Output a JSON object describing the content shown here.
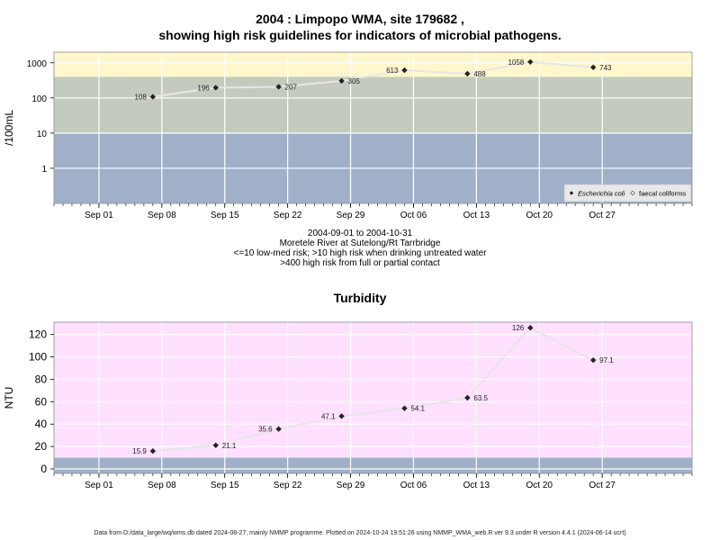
{
  "top_title_line1": "2004 : Limpopo WMA, site 179682 ,",
  "top_title_line2": "showing high risk guidelines for indicators of microbial pathogens.",
  "subtitle_lines": [
    "2004-09-01 to 2004-10-31",
    "Moretele River at Sutelong/Rt Tarrbridge",
    "<=10 low-med risk; >10 high risk when drinking untreated water",
    ">400 high risk from full or partial contact"
  ],
  "bottom_title": "Turbidity",
  "footer": "Data from D:/data_large/wq/wms.db dated 2024-08-27, mainly NMMP programme. Plotted on 2024-10-24 19:51:26 using NMMP_WMA_web.R ver 9.3 under R version 4.4.1 (2024-06-14 ucrt)",
  "colors": {
    "band_low": "#a0b0c8",
    "band_mid": "#c3cbbf",
    "band_high": "#fff7cc",
    "turb_bg": "#ffe0ff",
    "turb_low": "#a0b0c8",
    "line": "#e6e6e6",
    "point": "#222222"
  },
  "chart_data": [
    {
      "type": "scatter",
      "title": "2004 : Limpopo WMA, site 179682 , showing high risk guidelines for indicators of microbial pathogens.",
      "ylabel": "/100mL",
      "yscale": "log",
      "yticks": [
        1,
        10,
        100,
        1000
      ],
      "ytick_labels": [
        "1",
        "10",
        "100",
        "1000"
      ],
      "ylim": [
        0.1,
        2000
      ],
      "xlim": [
        "2004-08-27",
        "2004-11-06"
      ],
      "xticks": [
        "2004-09-01",
        "2004-09-08",
        "2004-09-15",
        "2004-09-22",
        "2004-09-29",
        "2004-10-06",
        "2004-10-13",
        "2004-10-20",
        "2004-10-27"
      ],
      "xtick_labels": [
        "Sep 01",
        "Sep 08",
        "Sep 15",
        "Sep 22",
        "Sep 29",
        "Oct 06",
        "Oct 13",
        "Oct 20",
        "Oct 27"
      ],
      "bands": [
        {
          "from": 0.1,
          "to": 10
        },
        {
          "from": 10,
          "to": 400
        },
        {
          "from": 400,
          "to": 2000
        }
      ],
      "legend_position": "bottom-right",
      "legend": [
        "Escherichia coli",
        "faecal coliforms"
      ],
      "series": [
        {
          "name": "Escherichia coli",
          "x": [
            "2004-09-07",
            "2004-09-14",
            "2004-09-21",
            "2004-09-28",
            "2004-10-05",
            "2004-10-12",
            "2004-10-19",
            "2004-10-26"
          ],
          "y": [
            108,
            196,
            207,
            305,
            613,
            488,
            1058,
            743
          ],
          "labels": [
            "108",
            "196",
            "207",
            "305",
            "613",
            "488",
            "1058",
            "743"
          ]
        }
      ]
    },
    {
      "type": "scatter",
      "title": "Turbidity",
      "ylabel": "NTU",
      "yticks": [
        0,
        20,
        40,
        60,
        80,
        100,
        120
      ],
      "ytick_labels": [
        "0",
        "20",
        "40",
        "60",
        "80",
        "100",
        "120"
      ],
      "ylim": [
        -4,
        131
      ],
      "xlim": [
        "2004-08-27",
        "2004-11-06"
      ],
      "xticks": [
        "2004-09-01",
        "2004-09-08",
        "2004-09-15",
        "2004-09-22",
        "2004-09-29",
        "2004-10-06",
        "2004-10-13",
        "2004-10-20",
        "2004-10-27"
      ],
      "xtick_labels": [
        "Sep 01",
        "Sep 08",
        "Sep 15",
        "Sep 22",
        "Sep 29",
        "Oct 06",
        "Oct 13",
        "Oct 20",
        "Oct 27"
      ],
      "bands": [
        {
          "from": -4,
          "to": 10
        }
      ],
      "series": [
        {
          "x": [
            "2004-09-07",
            "2004-09-14",
            "2004-09-21",
            "2004-09-28",
            "2004-10-05",
            "2004-10-12",
            "2004-10-19",
            "2004-10-26"
          ],
          "y": [
            15.9,
            21.1,
            35.6,
            47.1,
            54.1,
            63.5,
            126,
            97.1
          ],
          "labels": [
            "15.9",
            "21.1",
            "35.6",
            "47.1",
            "54.1",
            "63.5",
            "126",
            "97.1"
          ]
        }
      ]
    }
  ]
}
